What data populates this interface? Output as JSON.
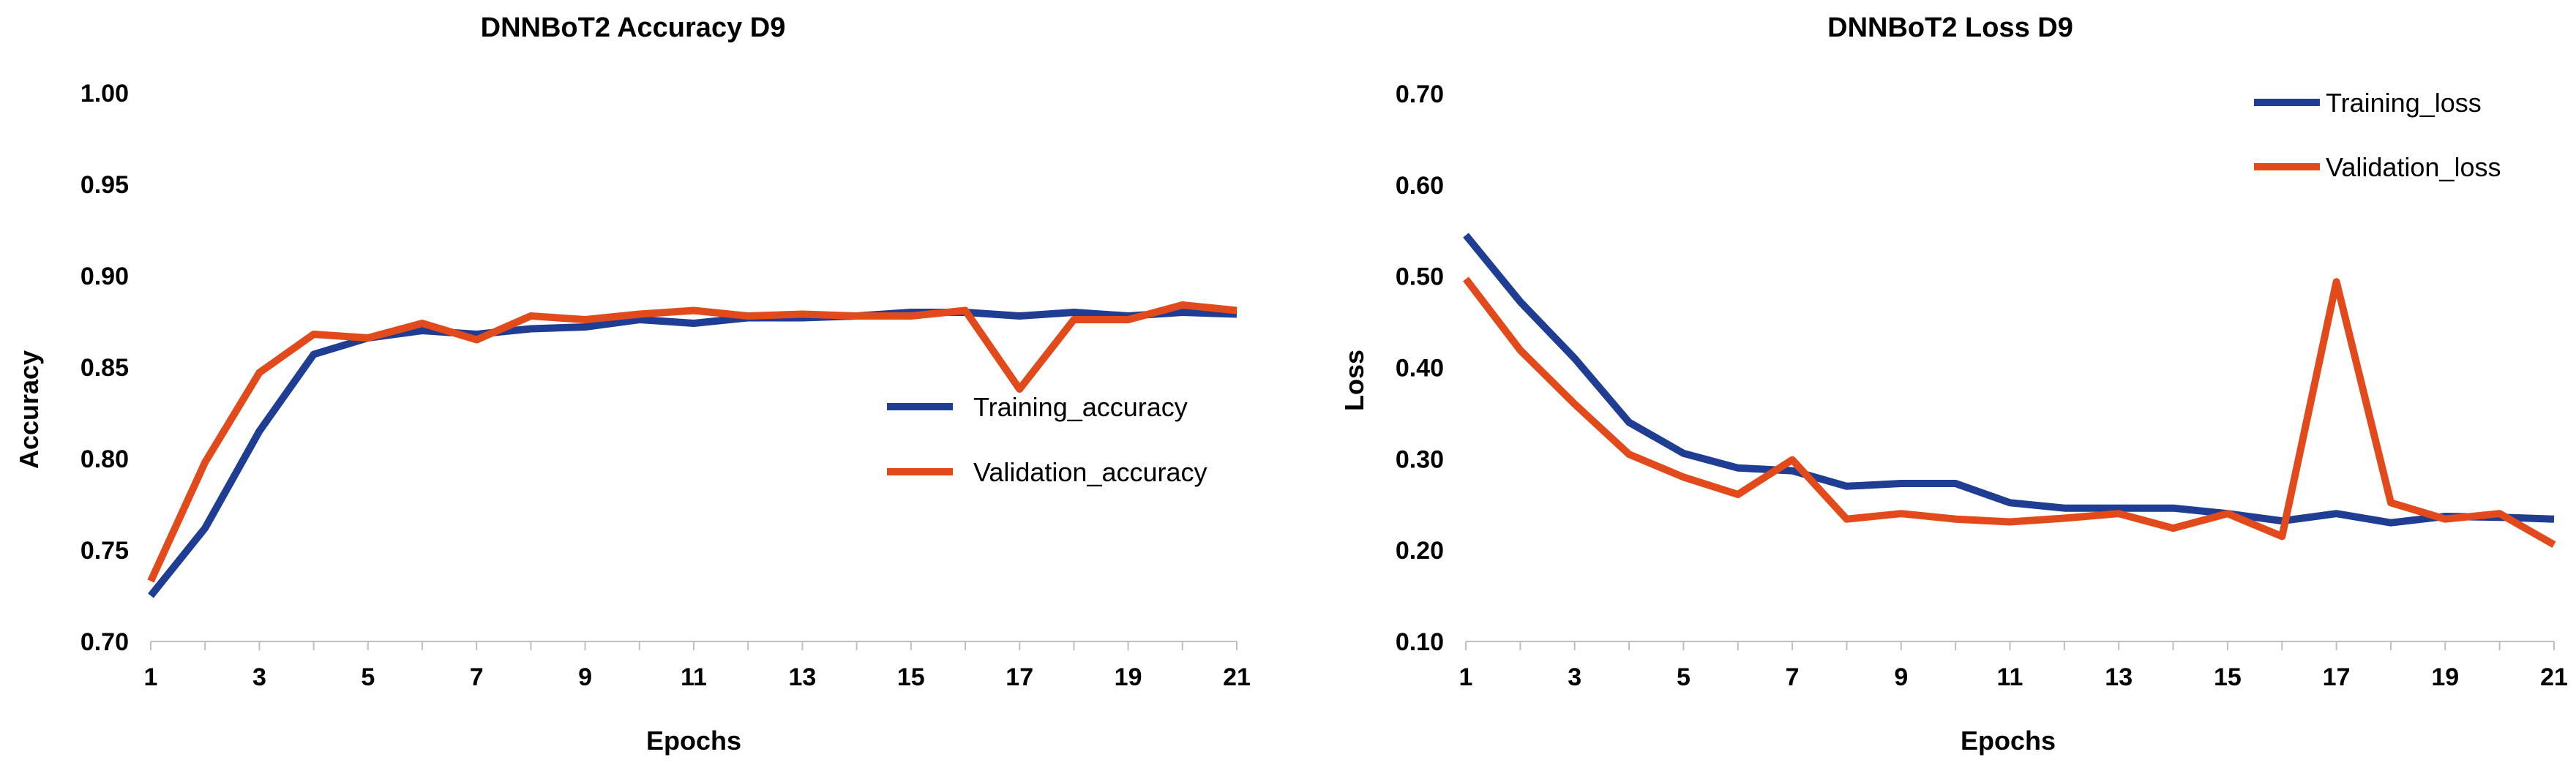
{
  "chart_data": [
    {
      "type": "line",
      "title": "DNNBoT2 Accuracy D9",
      "xlabel": "Epochs",
      "ylabel": "Accuracy",
      "x": [
        1,
        2,
        3,
        4,
        5,
        6,
        7,
        8,
        9,
        10,
        11,
        12,
        13,
        14,
        15,
        16,
        17,
        18,
        19,
        20,
        21
      ],
      "x_tick_labels": [
        "1",
        "3",
        "5",
        "7",
        "9",
        "11",
        "13",
        "15",
        "17",
        "19",
        "21"
      ],
      "y_tick_labels": [
        "0.70",
        "0.75",
        "0.80",
        "0.85",
        "0.90",
        "0.95",
        "1.00"
      ],
      "ylim": [
        0.7,
        1.0
      ],
      "legend_position": "center-right",
      "series": [
        {
          "name": "Training_accuracy",
          "color": "#1F3E93",
          "values": [
            0.725,
            0.762,
            0.815,
            0.857,
            0.866,
            0.87,
            0.868,
            0.871,
            0.872,
            0.876,
            0.874,
            0.877,
            0.877,
            0.878,
            0.88,
            0.88,
            0.878,
            0.88,
            0.878,
            0.88,
            0.879
          ]
        },
        {
          "name": "Validation_accuracy",
          "color": "#E24A1B",
          "values": [
            0.733,
            0.798,
            0.847,
            0.868,
            0.866,
            0.874,
            0.865,
            0.878,
            0.876,
            0.879,
            0.881,
            0.878,
            0.879,
            0.878,
            0.878,
            0.881,
            0.838,
            0.876,
            0.876,
            0.884,
            0.881
          ]
        }
      ]
    },
    {
      "type": "line",
      "title": "DNNBoT2 Loss D9",
      "xlabel": "Epochs",
      "ylabel": "Loss",
      "x": [
        1,
        2,
        3,
        4,
        5,
        6,
        7,
        8,
        9,
        10,
        11,
        12,
        13,
        14,
        15,
        16,
        17,
        18,
        19,
        20,
        21
      ],
      "x_tick_labels": [
        "1",
        "3",
        "5",
        "7",
        "9",
        "11",
        "13",
        "15",
        "17",
        "19",
        "21"
      ],
      "y_tick_labels": [
        "0.10",
        "0.20",
        "0.30",
        "0.40",
        "0.50",
        "0.60",
        "0.70"
      ],
      "ylim": [
        0.1,
        0.7
      ],
      "legend_position": "top-right",
      "series": [
        {
          "name": "Training_loss",
          "color": "#1F3E93",
          "values": [
            0.545,
            0.472,
            0.41,
            0.34,
            0.306,
            0.29,
            0.287,
            0.27,
            0.273,
            0.273,
            0.252,
            0.246,
            0.246,
            0.246,
            0.24,
            0.232,
            0.24,
            0.23,
            0.237,
            0.236,
            0.234
          ]
        },
        {
          "name": "Validation_loss",
          "color": "#E24A1B",
          "values": [
            0.497,
            0.419,
            0.36,
            0.305,
            0.28,
            0.261,
            0.299,
            0.234,
            0.24,
            0.234,
            0.231,
            0.235,
            0.24,
            0.224,
            0.24,
            0.215,
            0.494,
            0.252,
            0.234,
            0.24,
            0.206
          ]
        }
      ]
    }
  ]
}
